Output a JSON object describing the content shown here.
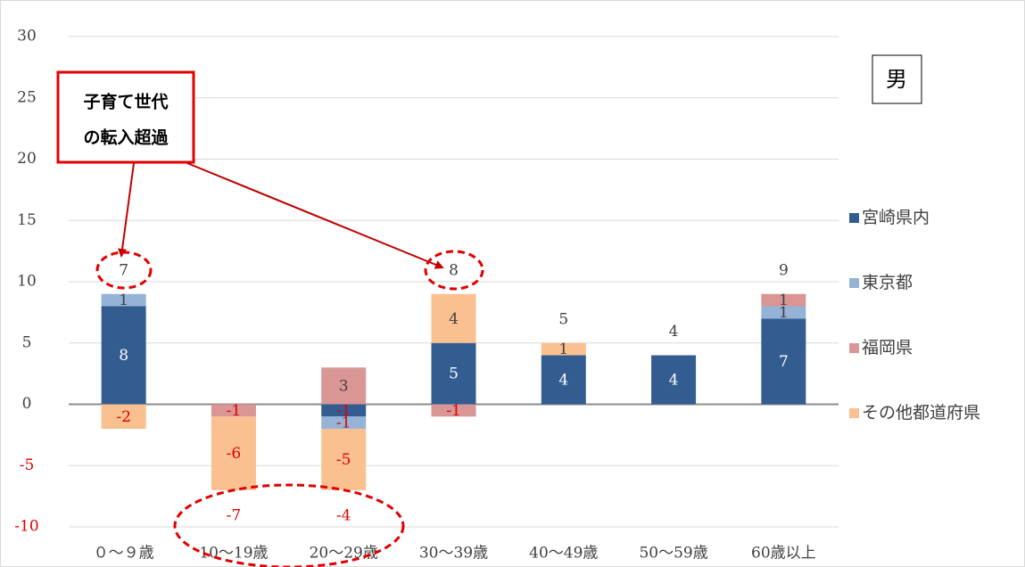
{
  "chart_data": {
    "type": "bar",
    "stacked": true,
    "categories": [
      "０～９歳",
      "10～19歳",
      "20～29歳",
      "30～39歳",
      "40～49歳",
      "50～59歳",
      "60歳以上"
    ],
    "series": [
      {
        "name": "宮崎県内",
        "color": "#335d91",
        "values": [
          8,
          0,
          -1,
          5,
          4,
          4,
          7
        ]
      },
      {
        "name": "東京都",
        "color": "#95b3d7",
        "values": [
          1,
          0,
          -1,
          0,
          0,
          0,
          1
        ]
      },
      {
        "name": "福岡県",
        "color": "#d99694",
        "values": [
          0,
          -1,
          3,
          -1,
          0,
          0,
          1
        ]
      },
      {
        "name": "その他都道府県",
        "color": "#fac090",
        "values": [
          -2,
          -6,
          -5,
          4,
          1,
          0,
          0
        ]
      }
    ],
    "totals": [
      7,
      -7,
      -4,
      8,
      5,
      4,
      9
    ],
    "ylim": [
      -10,
      30
    ],
    "yticks": [
      -10,
      -5,
      0,
      5,
      10,
      15,
      20,
      25,
      30
    ],
    "grid": true,
    "legend": "right",
    "annotation": [
      "子育て世代",
      "の転入超過"
    ],
    "gender_label": "男"
  }
}
